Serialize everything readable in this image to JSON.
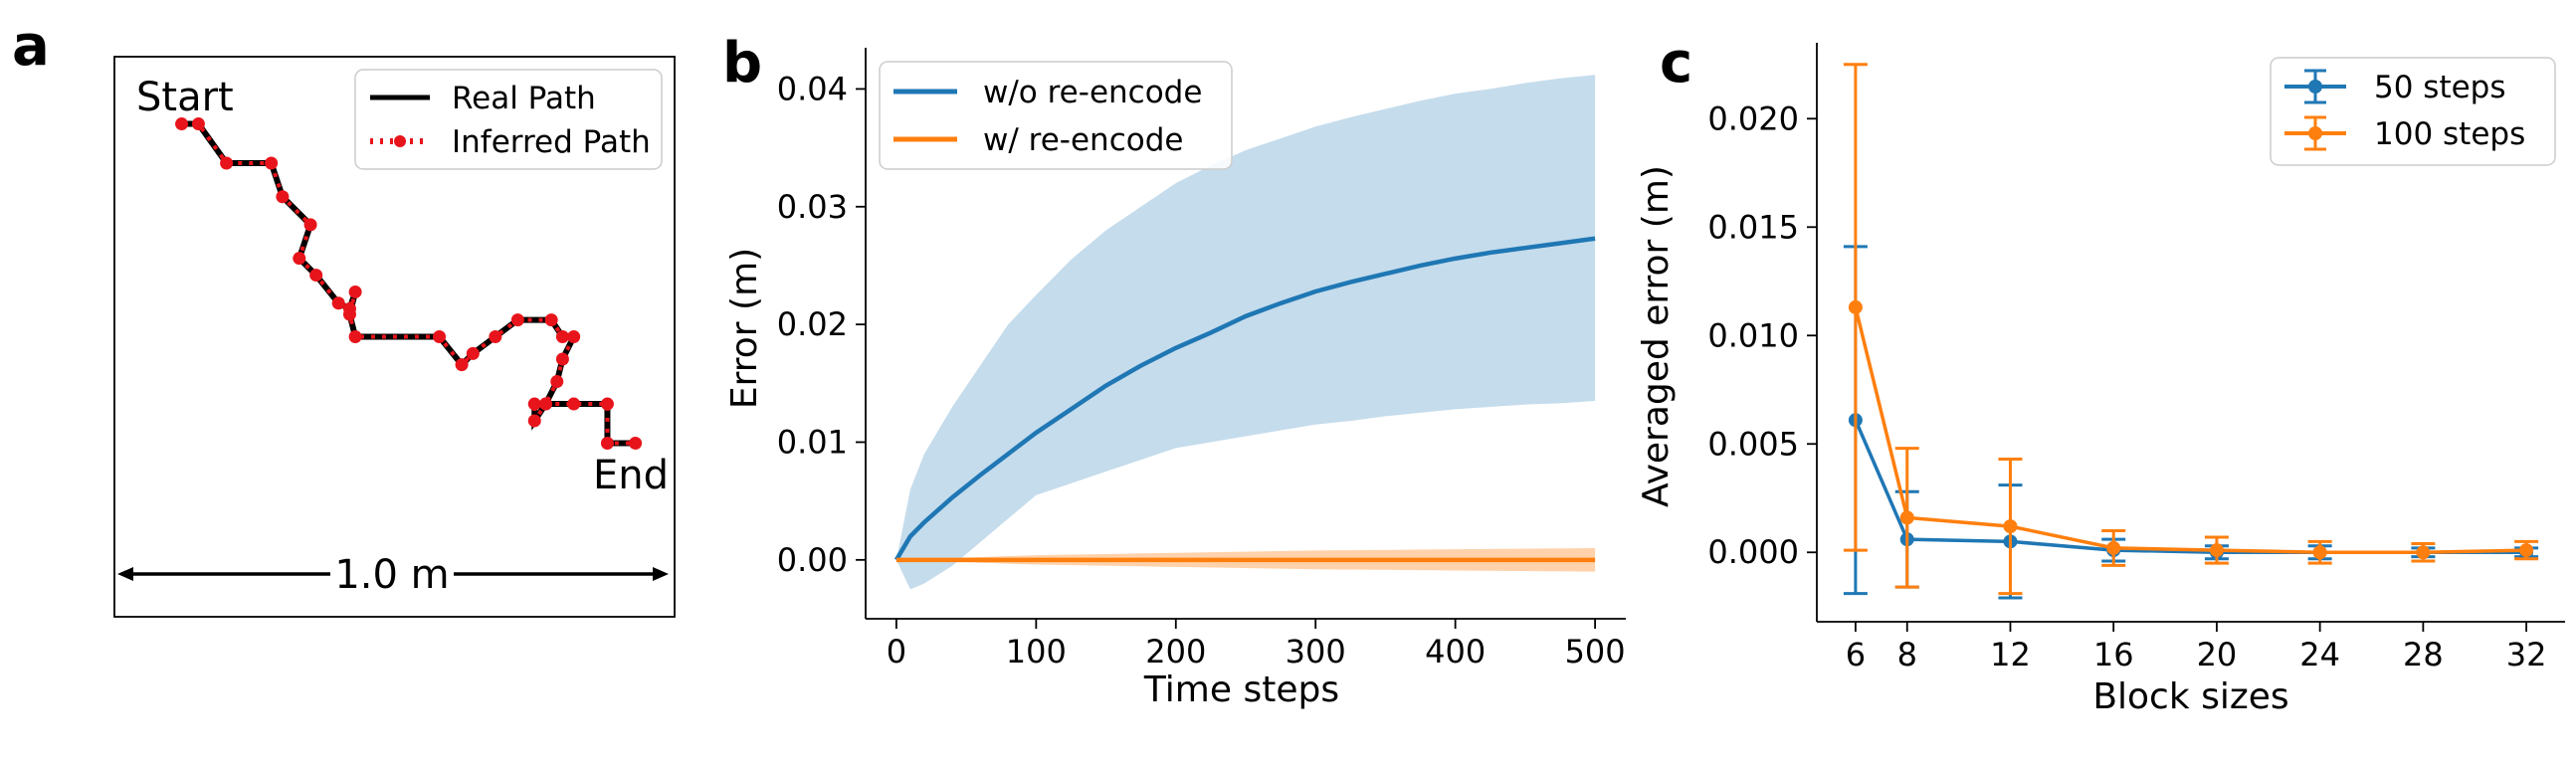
{
  "panels": {
    "a": {
      "letter": "a",
      "start_label": "Start",
      "end_label": "End",
      "scale_label": "1.0 m",
      "legend": [
        "Real Path",
        "Inferred Path"
      ],
      "colors": {
        "real": "#000000",
        "inferred": "#e8141b"
      }
    },
    "b": {
      "letter": "b",
      "xlabel": "Time steps",
      "ylabel": "Error (m)",
      "xticks": [
        "0",
        "100",
        "200",
        "300",
        "400",
        "500"
      ],
      "yticks": [
        "0.00",
        "0.01",
        "0.02",
        "0.03",
        "0.04"
      ],
      "legend": [
        "w/o re-encode",
        "w/ re-encode"
      ]
    },
    "c": {
      "letter": "c",
      "xlabel": "Block sizes",
      "ylabel": "Averaged error (m)",
      "xticks": [
        "6",
        "8",
        "12",
        "16",
        "20",
        "24",
        "28",
        "32"
      ],
      "yticks": [
        "0.000",
        "0.005",
        "0.010",
        "0.015",
        "0.020"
      ],
      "legend": [
        "50 steps",
        "100 steps"
      ]
    }
  },
  "chart_data": [
    {
      "type": "line",
      "panel": "a",
      "title": "",
      "series": [
        {
          "name": "Real Path",
          "color": "#000000",
          "style": "solid",
          "x": [
            0.12,
            0.15,
            0.2,
            0.28,
            0.3,
            0.35,
            0.33,
            0.36,
            0.4,
            0.42,
            0.43,
            0.42,
            0.43,
            0.58,
            0.62,
            0.64,
            0.68,
            0.72,
            0.78,
            0.8,
            0.82,
            0.8,
            0.79,
            0.77,
            0.75,
            0.75,
            0.77,
            0.82,
            0.88,
            0.88,
            0.93
          ],
          "y": [
            0.88,
            0.88,
            0.81,
            0.81,
            0.75,
            0.7,
            0.64,
            0.61,
            0.56,
            0.55,
            0.58,
            0.54,
            0.5,
            0.5,
            0.45,
            0.47,
            0.5,
            0.53,
            0.53,
            0.5,
            0.5,
            0.46,
            0.42,
            0.38,
            0.38,
            0.35,
            0.38,
            0.38,
            0.38,
            0.31,
            0.31
          ]
        },
        {
          "name": "Inferred Path",
          "color": "#e8141b",
          "style": "dotted",
          "x": [
            0.12,
            0.15,
            0.2,
            0.28,
            0.3,
            0.35,
            0.33,
            0.36,
            0.4,
            0.42,
            0.43,
            0.42,
            0.43,
            0.58,
            0.62,
            0.64,
            0.68,
            0.72,
            0.78,
            0.8,
            0.82,
            0.8,
            0.79,
            0.77,
            0.75,
            0.75,
            0.77,
            0.82,
            0.88,
            0.88,
            0.93
          ],
          "y": [
            0.88,
            0.88,
            0.81,
            0.81,
            0.75,
            0.7,
            0.64,
            0.61,
            0.56,
            0.55,
            0.58,
            0.54,
            0.5,
            0.5,
            0.45,
            0.47,
            0.5,
            0.53,
            0.53,
            0.5,
            0.5,
            0.46,
            0.42,
            0.38,
            0.38,
            0.35,
            0.38,
            0.38,
            0.38,
            0.31,
            0.31
          ]
        }
      ]
    },
    {
      "type": "area",
      "panel": "b",
      "xlabel": "Time steps",
      "ylabel": "Error (m)",
      "xlim": [
        -22,
        522
      ],
      "ylim": [
        -0.005,
        0.0435
      ],
      "series": [
        {
          "name": "w/o re-encode",
          "color": "#1f77b4",
          "x": [
            0,
            10,
            20,
            40,
            60,
            80,
            100,
            125,
            150,
            175,
            200,
            225,
            250,
            275,
            300,
            325,
            350,
            375,
            400,
            425,
            450,
            475,
            500
          ],
          "mean": [
            0,
            0.002,
            0.0032,
            0.0053,
            0.0072,
            0.009,
            0.0108,
            0.0128,
            0.0148,
            0.0165,
            0.018,
            0.0193,
            0.0207,
            0.0218,
            0.0228,
            0.0236,
            0.0243,
            0.025,
            0.0256,
            0.0261,
            0.0265,
            0.0269,
            0.0273
          ],
          "upper": [
            0,
            0.006,
            0.009,
            0.013,
            0.0165,
            0.02,
            0.0225,
            0.0255,
            0.028,
            0.03,
            0.032,
            0.0335,
            0.0348,
            0.0358,
            0.0368,
            0.0376,
            0.0383,
            0.039,
            0.0396,
            0.04,
            0.0405,
            0.0409,
            0.0412
          ],
          "lower": [
            0,
            -0.0025,
            -0.002,
            -0.0005,
            0.0015,
            0.0035,
            0.0055,
            0.0065,
            0.0075,
            0.0085,
            0.0095,
            0.01,
            0.0105,
            0.011,
            0.0115,
            0.0118,
            0.0122,
            0.0125,
            0.0128,
            0.013,
            0.0132,
            0.0133,
            0.0135
          ]
        },
        {
          "name": "w/ re-encode",
          "color": "#ff7f0e",
          "x": [
            0,
            100,
            200,
            300,
            400,
            500
          ],
          "mean": [
            0,
            0,
            0,
            0,
            0,
            0
          ],
          "upper": [
            0,
            0.0004,
            0.0006,
            0.0008,
            0.0009,
            0.001
          ],
          "lower": [
            0,
            -0.0004,
            -0.0006,
            -0.0008,
            -0.0009,
            -0.001
          ]
        }
      ]
    },
    {
      "type": "line",
      "panel": "c",
      "xlabel": "Block sizes",
      "ylabel": "Averaged error (m)",
      "xlim": [
        4.5,
        33.5
      ],
      "ylim": [
        -0.0032,
        0.0235
      ],
      "series": [
        {
          "name": "50 steps",
          "color": "#1f77b4",
          "x": [
            6,
            8,
            12,
            16,
            20,
            24,
            28,
            32
          ],
          "y": [
            0.0061,
            0.0006,
            0.0005,
            0.0001,
            0.0,
            0.0,
            0.0,
            0.0
          ],
          "err": [
            0.008,
            0.0022,
            0.0026,
            0.0005,
            0.0003,
            0.0003,
            0.0002,
            0.0002
          ]
        },
        {
          "name": "100 steps",
          "color": "#ff7f0e",
          "x": [
            6,
            8,
            12,
            16,
            20,
            24,
            28,
            32
          ],
          "y": [
            0.0113,
            0.0016,
            0.0012,
            0.0002,
            0.0001,
            0.0,
            0.0,
            0.0001
          ],
          "err": [
            0.0112,
            0.0032,
            0.0031,
            0.0008,
            0.0006,
            0.0005,
            0.0004,
            0.0004
          ]
        }
      ]
    }
  ]
}
